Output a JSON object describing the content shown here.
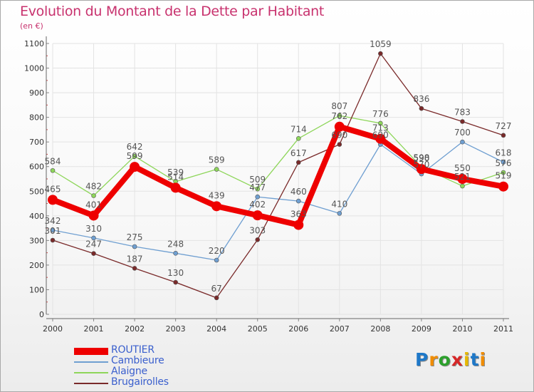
{
  "title": "Evolution du Montant de la Dette par Habitant",
  "unit": "(en €)",
  "brand": {
    "text": "Proxiti",
    "letter_colors": [
      "#1e78c8",
      "#f08c00",
      "#2ca02c",
      "#d62728",
      "#e6b800",
      "#1e78c8",
      "#f08c00"
    ]
  },
  "chart_data": {
    "type": "line",
    "x": [
      "2000",
      "2001",
      "2002",
      "2003",
      "2004",
      "2005",
      "2006",
      "2007",
      "2008",
      "2009",
      "2010",
      "2011"
    ],
    "y_ticks": [
      "0",
      "100",
      "200",
      "300",
      "400",
      "500",
      "600",
      "700",
      "800",
      "900",
      "1000",
      "1100"
    ],
    "ylim": [
      0,
      1100
    ],
    "grid": true,
    "legend_position": "bottom-left",
    "series": [
      {
        "name": "ROUTIER",
        "color": "#ee0000",
        "emphasis": true,
        "values": [
          465,
          401,
          599,
          514,
          439,
          402,
          363,
          762,
          713,
          590,
          550,
          519
        ],
        "labels": [
          "465",
          "401",
          "599",
          "514",
          "439",
          "402",
          "363",
          "762",
          "713",
          "590",
          "550",
          "519"
        ]
      },
      {
        "name": "Cambieure",
        "color": "#6f9fd1",
        "emphasis": false,
        "values": [
          342,
          310,
          275,
          248,
          220,
          477,
          460,
          410,
          690,
          570,
          700,
          618
        ],
        "labels": [
          "342",
          "310",
          "275",
          "248",
          "220",
          "477",
          "460",
          "410",
          "690",
          "570",
          "700",
          "618"
        ]
      },
      {
        "name": "Alaigne",
        "color": "#8ed65a",
        "emphasis": false,
        "values": [
          584,
          482,
          642,
          539,
          589,
          509,
          714,
          807,
          776,
          598,
          521,
          576
        ],
        "labels": [
          "584",
          "482",
          "642",
          "539",
          "589",
          "509",
          "714",
          "807",
          "776",
          "598",
          "521",
          "576"
        ]
      },
      {
        "name": "Brugairolles",
        "color": "#7a2a2a",
        "emphasis": false,
        "values": [
          301,
          247,
          187,
          130,
          67,
          303,
          617,
          690,
          1059,
          836,
          783,
          727
        ],
        "labels": [
          "301",
          "247",
          "187",
          "130",
          "67",
          "303",
          "617",
          "690",
          "1059",
          "836",
          "783",
          "727"
        ]
      }
    ]
  }
}
